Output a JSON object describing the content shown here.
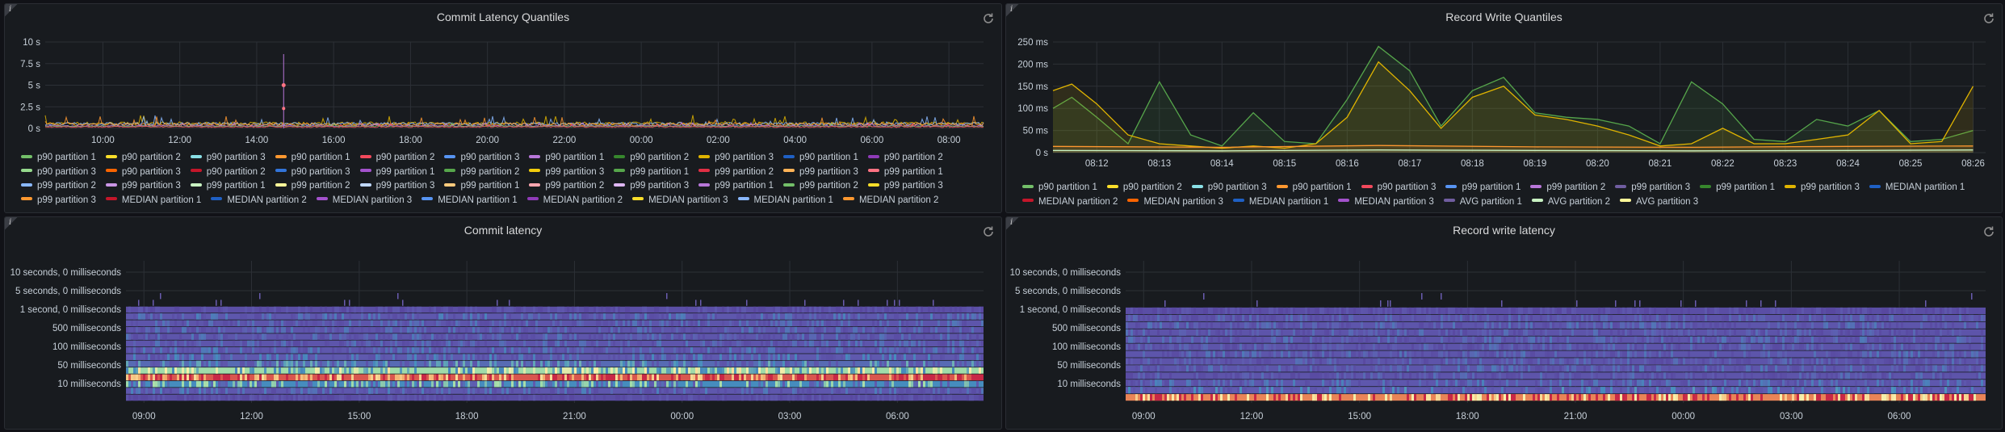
{
  "colors": {
    "background": "#111217",
    "panel": "#181b1f",
    "grid": "#2c3036",
    "heat_low": "#5b4aa0",
    "heat_mid": "#c8e6a0",
    "heat_high": "#d84c4c"
  },
  "panels": [
    {
      "id": "commit-latency-quantiles",
      "title": "Commit Latency Quantiles",
      "info_icon": "info-icon",
      "refresh_icon": "refresh-icon"
    },
    {
      "id": "record-write-quantiles",
      "title": "Record Write Quantiles",
      "info_icon": "info-icon",
      "refresh_icon": "refresh-icon"
    },
    {
      "id": "commit-latency",
      "title": "Commit latency",
      "info_icon": "info-icon",
      "refresh_icon": "refresh-icon"
    },
    {
      "id": "record-write-latency",
      "title": "Record write latency",
      "info_icon": "info-icon",
      "refresh_icon": "refresh-icon"
    }
  ],
  "legends": {
    "commit_quantiles": [
      {
        "label": "p90 partition 1",
        "color": "#73bf69"
      },
      {
        "label": "p90 partition 2",
        "color": "#fade2a"
      },
      {
        "label": "p90 partition 3",
        "color": "#8ae0e6"
      },
      {
        "label": "p90 partition 1",
        "color": "#ff9830"
      },
      {
        "label": "p90 partition 2",
        "color": "#f2495c"
      },
      {
        "label": "p90 partition 3",
        "color": "#5794f2"
      },
      {
        "label": "p90 partition 1",
        "color": "#b877d9"
      },
      {
        "label": "p90 partition 2",
        "color": "#37872d"
      },
      {
        "label": "p90 partition 3",
        "color": "#e0b400"
      },
      {
        "label": "p90 partition 1",
        "color": "#1f60c4"
      },
      {
        "label": "p90 partition 2",
        "color": "#8f3bb8"
      },
      {
        "label": "p90 partition 3",
        "color": "#96d98d"
      },
      {
        "label": "p90 partition 3",
        "color": "#fa6400"
      },
      {
        "label": "p90 partition 2",
        "color": "#c4162a"
      },
      {
        "label": "p90 partition 3",
        "color": "#3274d9"
      },
      {
        "label": "p99 partition 1",
        "color": "#a352cc"
      },
      {
        "label": "p99 partition 2",
        "color": "#56a64b"
      },
      {
        "label": "p99 partition 3",
        "color": "#f2cc0c"
      },
      {
        "label": "p99 partition 1",
        "color": "#56a64b"
      },
      {
        "label": "p99 partition 2",
        "color": "#e02f44"
      },
      {
        "label": "p99 partition 3",
        "color": "#ffb357"
      },
      {
        "label": "p99 partition 1",
        "color": "#ff7383"
      },
      {
        "label": "p99 partition 2",
        "color": "#8ab8ff"
      },
      {
        "label": "p99 partition 3",
        "color": "#ca95e5"
      },
      {
        "label": "p99 partition 1",
        "color": "#c8f2c2"
      },
      {
        "label": "p99 partition 2",
        "color": "#fff899"
      },
      {
        "label": "p99 partition 3",
        "color": "#c0d8ff"
      },
      {
        "label": "p99 partition 1",
        "color": "#ffcb7d"
      },
      {
        "label": "p99 partition 2",
        "color": "#ffa6b0"
      },
      {
        "label": "p99 partition 3",
        "color": "#deb6f2"
      },
      {
        "label": "p99 partition 1",
        "color": "#b877d9"
      },
      {
        "label": "p99 partition 2",
        "color": "#73bf69"
      },
      {
        "label": "p99 partition 3",
        "color": "#fade2a"
      },
      {
        "label": "p99 partition 3",
        "color": "#ff9830"
      },
      {
        "label": "MEDIAN partition 1",
        "color": "#c4162a"
      },
      {
        "label": "MEDIAN partition 2",
        "color": "#1f60c4"
      },
      {
        "label": "MEDIAN partition 3",
        "color": "#a352cc"
      },
      {
        "label": "MEDIAN partition 1",
        "color": "#5794f2"
      },
      {
        "label": "MEDIAN partition 2",
        "color": "#8f3bb8"
      },
      {
        "label": "MEDIAN partition 3",
        "color": "#fade2a"
      },
      {
        "label": "MEDIAN partition 1",
        "color": "#8ab8ff"
      },
      {
        "label": "MEDIAN partition 2",
        "color": "#ff9830"
      },
      {
        "label": "MEDIAN partition 3",
        "color": "#f2495c"
      },
      {
        "label": "MEDIAN partition 1",
        "color": "#3274d9"
      },
      {
        "label": "MEDIAN partition 3",
        "color": "#ff7383"
      },
      {
        "label": "MEDIAN partition 3",
        "color": "#a352cc"
      },
      {
        "label": "MEDIAN partition 2",
        "color": "#56a64b"
      }
    ],
    "record_quantiles": [
      {
        "label": "p90 partition 1",
        "color": "#73bf69"
      },
      {
        "label": "p90 partition 2",
        "color": "#fade2a"
      },
      {
        "label": "p90 partition 3",
        "color": "#8ae0e6"
      },
      {
        "label": "p90 partition 1",
        "color": "#ff9830"
      },
      {
        "label": "p90 partition 3",
        "color": "#f2495c"
      },
      {
        "label": "p99 partition 1",
        "color": "#5794f2"
      },
      {
        "label": "p99 partition 2",
        "color": "#b877d9"
      },
      {
        "label": "p99 partition 3",
        "color": "#705da0"
      },
      {
        "label": "p99 partition 1",
        "color": "#37872d"
      },
      {
        "label": "p99 partition 3",
        "color": "#e0b400"
      },
      {
        "label": "MEDIAN partition 1",
        "color": "#1f60c4"
      },
      {
        "label": "MEDIAN partition 2",
        "color": "#c4162a"
      },
      {
        "label": "MEDIAN partition 3",
        "color": "#fa6400"
      },
      {
        "label": "MEDIAN partition 1",
        "color": "#1f60c4"
      },
      {
        "label": "MEDIAN partition 3",
        "color": "#a352cc"
      },
      {
        "label": "AVG partition 1",
        "color": "#705da0"
      },
      {
        "label": "AVG partition 2",
        "color": "#c8f2c2"
      },
      {
        "label": "AVG partition 3",
        "color": "#fff899"
      }
    ]
  },
  "chart_data": [
    {
      "id": "commit-latency-quantiles",
      "type": "line",
      "title": "Commit Latency Quantiles",
      "y_ticks": [
        "10 s",
        "7.5 s",
        "5 s",
        "2.5 s",
        "0 s"
      ],
      "y_tick_values": [
        10,
        7.5,
        5,
        2.5,
        0
      ],
      "ylim": [
        0,
        10
      ],
      "x_ticks": [
        "10:00",
        "12:00",
        "14:00",
        "16:00",
        "18:00",
        "20:00",
        "22:00",
        "00:00",
        "02:00",
        "04:00",
        "06:00",
        "08:00"
      ],
      "x_tick_hours": [
        10,
        12,
        14,
        16,
        18,
        20,
        22,
        24,
        26,
        28,
        30,
        32
      ],
      "xlim_hours": [
        8.5,
        32.9
      ],
      "spike": {
        "hour": 14.7,
        "value": 8.6,
        "dot_value": 5.0
      },
      "baseline": 0.4,
      "grid": true
    },
    {
      "id": "record-write-quantiles",
      "type": "area",
      "title": "Record Write Quantiles",
      "y_ticks": [
        "250 ms",
        "200 ms",
        "150 ms",
        "100 ms",
        "50 ms",
        "0 s"
      ],
      "y_tick_values": [
        250,
        200,
        150,
        100,
        50,
        0
      ],
      "ylim": [
        0,
        250
      ],
      "x_ticks": [
        "08:12",
        "08:13",
        "08:14",
        "08:15",
        "08:16",
        "08:17",
        "08:18",
        "08:19",
        "08:20",
        "08:21",
        "08:22",
        "08:23",
        "08:24",
        "08:25",
        "08:26"
      ],
      "x_tick_minutes": [
        12,
        13,
        14,
        15,
        16,
        17,
        18,
        19,
        20,
        21,
        22,
        23,
        24,
        25,
        26
      ],
      "xlim_minutes": [
        11.3,
        26.2
      ],
      "series": [
        {
          "name": "p99 partition 1",
          "color": "#56a64b",
          "x": [
            11.3,
            11.6,
            12.0,
            12.5,
            13.0,
            13.5,
            14.0,
            14.5,
            15.0,
            15.5,
            16.0,
            16.5,
            17.0,
            17.5,
            18.0,
            18.5,
            19.0,
            19.5,
            20.0,
            20.5,
            21.0,
            21.5,
            22.0,
            22.5,
            23.0,
            23.5,
            24.0,
            24.5,
            25.0,
            25.5,
            26.0
          ],
          "values": [
            100,
            125,
            80,
            20,
            160,
            40,
            15,
            90,
            25,
            20,
            120,
            240,
            185,
            60,
            140,
            170,
            90,
            80,
            75,
            60,
            20,
            160,
            110,
            30,
            25,
            75,
            60,
            95,
            25,
            30,
            50
          ]
        },
        {
          "name": "p99 partition 3",
          "color": "#e0b400",
          "x": [
            11.3,
            11.6,
            12.0,
            12.5,
            13.0,
            13.5,
            14.0,
            14.5,
            15.0,
            15.5,
            16.0,
            16.5,
            17.0,
            17.5,
            18.0,
            18.5,
            19.0,
            19.5,
            20.0,
            20.5,
            21.0,
            21.5,
            22.0,
            22.5,
            23.0,
            23.5,
            24.0,
            24.5,
            25.0,
            25.5,
            26.0
          ],
          "values": [
            140,
            155,
            110,
            40,
            20,
            15,
            10,
            15,
            10,
            20,
            80,
            205,
            140,
            55,
            125,
            150,
            85,
            75,
            60,
            40,
            15,
            20,
            55,
            20,
            20,
            30,
            40,
            95,
            20,
            25,
            150
          ]
        },
        {
          "name": "p90 partition 1",
          "color": "#ff9830",
          "x": [
            11.3,
            14.0,
            16.5,
            19.0,
            21.5,
            24.0,
            26.0
          ],
          "values": [
            14,
            12,
            16,
            13,
            12,
            14,
            15
          ]
        },
        {
          "name": "AVG partition 2",
          "color": "#c8f2c2",
          "x": [
            11.3,
            14.0,
            16.5,
            19.0,
            21.5,
            24.0,
            26.0
          ],
          "values": [
            5,
            4,
            6,
            5,
            4,
            5,
            6
          ]
        }
      ],
      "grid": true
    },
    {
      "id": "commit-latency",
      "type": "heatmap",
      "title": "Commit latency",
      "y_buckets": [
        "10 seconds, 0 milliseconds",
        "5 seconds, 0 milliseconds",
        "1 second, 0 milliseconds",
        "500 milliseconds",
        "100 milliseconds",
        "50 milliseconds",
        "10 milliseconds"
      ],
      "x_ticks": [
        "09:00",
        "12:00",
        "15:00",
        "18:00",
        "21:00",
        "00:00",
        "03:00",
        "06:00"
      ],
      "x_tick_hours": [
        9,
        12,
        15,
        18,
        21,
        24,
        27,
        30
      ],
      "xlim_hours": [
        8.5,
        32.4
      ],
      "row_levels": [
        0.02,
        0.05,
        0.12,
        0.25,
        0.22,
        0.22,
        0.22,
        0.22,
        0.25,
        0.28,
        0.35,
        0.6,
        0.95,
        0.45,
        0.25,
        0.1
      ],
      "grid": true
    },
    {
      "id": "record-write-latency",
      "type": "heatmap",
      "title": "Record write latency",
      "y_buckets": [
        "10 seconds, 0 milliseconds",
        "5 seconds, 0 milliseconds",
        "1 second, 0 milliseconds",
        "500 milliseconds",
        "100 milliseconds",
        "50 milliseconds",
        "10 milliseconds"
      ],
      "x_ticks": [
        "09:00",
        "12:00",
        "15:00",
        "18:00",
        "21:00",
        "00:00",
        "03:00",
        "06:00"
      ],
      "x_tick_hours": [
        9,
        12,
        15,
        18,
        21,
        24,
        27,
        30
      ],
      "xlim_hours": [
        8.5,
        32.4
      ],
      "row_levels": [
        0.02,
        0.05,
        0.1,
        0.2,
        0.22,
        0.2,
        0.22,
        0.2,
        0.22,
        0.2,
        0.22,
        0.2,
        0.25,
        0.3,
        0.9
      ],
      "grid": true
    }
  ]
}
